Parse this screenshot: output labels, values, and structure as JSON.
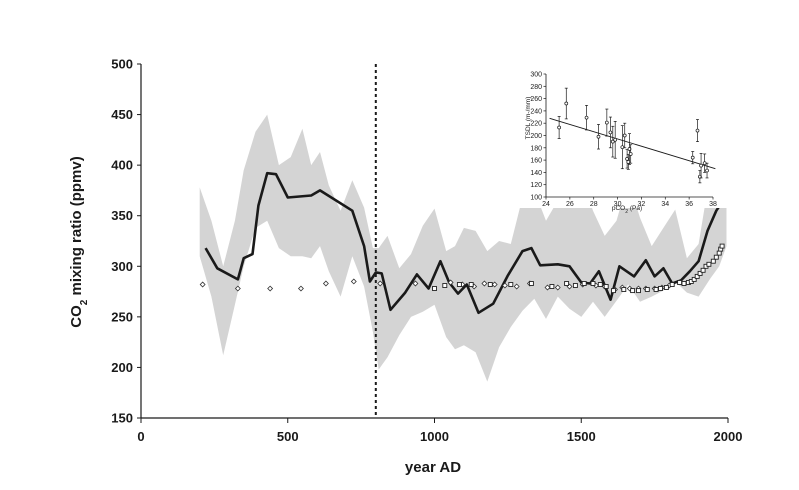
{
  "chart_data": [
    {
      "type": "line",
      "title": "",
      "xlabel": "year AD",
      "ylabel_parts": [
        "CO",
        "2",
        " mixing ratio (ppmv)"
      ],
      "xlim": [
        0,
        2000
      ],
      "ylim": [
        150,
        500
      ],
      "xticks": [
        0,
        500,
        1000,
        1500,
        2000
      ],
      "yticks": [
        150,
        200,
        250,
        300,
        350,
        400,
        450,
        500
      ],
      "grid": false,
      "vertical_reference_line_x": 800,
      "band_color": "#d4d4d4",
      "line_color": "#1a1a1a",
      "band": {
        "x": [
          200,
          240,
          280,
          320,
          350,
          390,
          430,
          470,
          510,
          550,
          580,
          610,
          640,
          680,
          720,
          760,
          790,
          810,
          840,
          880,
          920,
          960,
          1000,
          1040,
          1070,
          1100,
          1140,
          1180,
          1220,
          1260,
          1300,
          1340,
          1380,
          1420,
          1460,
          1500,
          1540,
          1580,
          1620,
          1660,
          1700,
          1740,
          1780,
          1820,
          1860,
          1900,
          1940,
          1970,
          1995
        ],
        "upper": [
          378,
          345,
          300,
          345,
          395,
          433,
          450,
          400,
          408,
          436,
          400,
          413,
          380,
          355,
          385,
          358,
          318,
          318,
          330,
          298,
          312,
          340,
          357,
          315,
          320,
          338,
          335,
          315,
          325,
          322,
          368,
          375,
          345,
          365,
          368,
          390,
          355,
          330,
          345,
          385,
          348,
          320,
          338,
          356,
          308,
          322,
          393,
          415,
          408
        ],
        "lower": [
          310,
          270,
          212,
          262,
          300,
          338,
          345,
          318,
          310,
          310,
          308,
          320,
          295,
          270,
          310,
          280,
          235,
          198,
          210,
          232,
          250,
          255,
          262,
          230,
          218,
          222,
          215,
          186,
          220,
          240,
          256,
          268,
          248,
          270,
          258,
          250,
          265,
          250,
          266,
          282,
          265,
          270,
          276,
          285,
          274,
          270,
          288,
          300,
          320
        ]
      },
      "series": [
        {
          "type": "line",
          "x": [
            220,
            260,
            330,
            350,
            380,
            400,
            430,
            460,
            500,
            540,
            580,
            610,
            720,
            760,
            780,
            800,
            820,
            850,
            900,
            940,
            980,
            1020,
            1050,
            1080,
            1110,
            1150,
            1200,
            1250,
            1300,
            1330,
            1360,
            1420,
            1460,
            1500,
            1530,
            1560,
            1600,
            1630,
            1680,
            1720,
            1750,
            1780,
            1810,
            1840,
            1870,
            1900,
            1930,
            1960,
            1990
          ],
          "y": [
            318,
            298,
            287,
            308,
            312,
            360,
            392,
            391,
            368,
            369,
            370,
            375,
            355,
            320,
            285,
            294,
            293,
            257,
            274,
            292,
            278,
            305,
            284,
            273,
            282,
            254,
            263,
            291,
            315,
            318,
            301,
            302,
            300,
            284,
            283,
            295,
            267,
            300,
            290,
            306,
            290,
            298,
            283,
            286,
            295,
            305,
            335,
            355,
            368
          ]
        },
        {
          "type": "scatter",
          "marker": "diamond",
          "x": [
            210,
            330,
            440,
            545,
            630,
            725,
            815,
            935,
            1055,
            1095,
            1135,
            1170,
            1205,
            1240,
            1280,
            1325,
            1385,
            1420,
            1460,
            1505,
            1550,
            1580,
            1615,
            1640,
            1665,
            1695,
            1720,
            1750,
            1775,
            1800
          ],
          "y": [
            282,
            278,
            278,
            278,
            283,
            285,
            283,
            283,
            284,
            282,
            280,
            283,
            282,
            281,
            280,
            283,
            279,
            279,
            280,
            282,
            281,
            280,
            277,
            279,
            278,
            278,
            278,
            278,
            279,
            281
          ]
        },
        {
          "type": "scatter",
          "marker": "square",
          "x": [
            1000,
            1035,
            1085,
            1125,
            1190,
            1260,
            1330,
            1400,
            1450,
            1480,
            1510,
            1540,
            1565,
            1585,
            1610,
            1645,
            1675,
            1695,
            1725,
            1755,
            1770,
            1790,
            1810,
            1835,
            1850,
            1865,
            1875,
            1885,
            1895,
            1905,
            1915,
            1925,
            1935,
            1950,
            1960,
            1970,
            1975,
            1980
          ],
          "y": [
            278,
            281,
            282,
            282,
            282,
            282,
            283,
            280,
            283,
            281,
            283,
            283,
            282,
            280,
            276,
            277,
            276,
            276,
            277,
            277,
            278,
            279,
            282,
            284,
            283,
            284,
            285,
            287,
            290,
            293,
            296,
            300,
            302,
            305,
            309,
            313,
            317,
            320
          ]
        }
      ]
    },
    {
      "type": "scatter",
      "title": "",
      "xlabel_parts": [
        "pCO",
        "2",
        " (Pa)"
      ],
      "ylabel": "TSDL (m-/mm)",
      "xlim": [
        24,
        38
      ],
      "ylim": [
        100,
        300
      ],
      "xticks": [
        24,
        26,
        28,
        30,
        32,
        34,
        36,
        38
      ],
      "yticks": [
        100,
        120,
        140,
        160,
        180,
        200,
        220,
        240,
        260,
        280,
        300
      ],
      "grid": false,
      "regression_line": {
        "x": [
          24.3,
          38.2
        ],
        "y": [
          228,
          146
        ]
      },
      "points": [
        {
          "x": 25.1,
          "y": 213,
          "err": 18
        },
        {
          "x": 25.7,
          "y": 252,
          "err": 25
        },
        {
          "x": 27.4,
          "y": 229,
          "err": 20
        },
        {
          "x": 28.4,
          "y": 198,
          "err": 20
        },
        {
          "x": 29.1,
          "y": 221,
          "err": 22
        },
        {
          "x": 29.4,
          "y": 205,
          "err": 25
        },
        {
          "x": 29.6,
          "y": 190,
          "err": 25
        },
        {
          "x": 29.8,
          "y": 193,
          "err": 30
        },
        {
          "x": 30.4,
          "y": 181,
          "err": 35
        },
        {
          "x": 30.6,
          "y": 200,
          "err": 20
        },
        {
          "x": 30.8,
          "y": 162,
          "err": 15
        },
        {
          "x": 31.0,
          "y": 178,
          "err": 25
        },
        {
          "x": 30.9,
          "y": 157,
          "err": 12
        },
        {
          "x": 31.1,
          "y": 170,
          "err": 15
        },
        {
          "x": 36.3,
          "y": 164,
          "err": 10
        },
        {
          "x": 36.7,
          "y": 208,
          "err": 18
        },
        {
          "x": 36.9,
          "y": 133,
          "err": 10
        },
        {
          "x": 37.0,
          "y": 151,
          "err": 20
        },
        {
          "x": 37.3,
          "y": 155,
          "err": 15
        },
        {
          "x": 37.5,
          "y": 143,
          "err": 12
        }
      ]
    }
  ]
}
